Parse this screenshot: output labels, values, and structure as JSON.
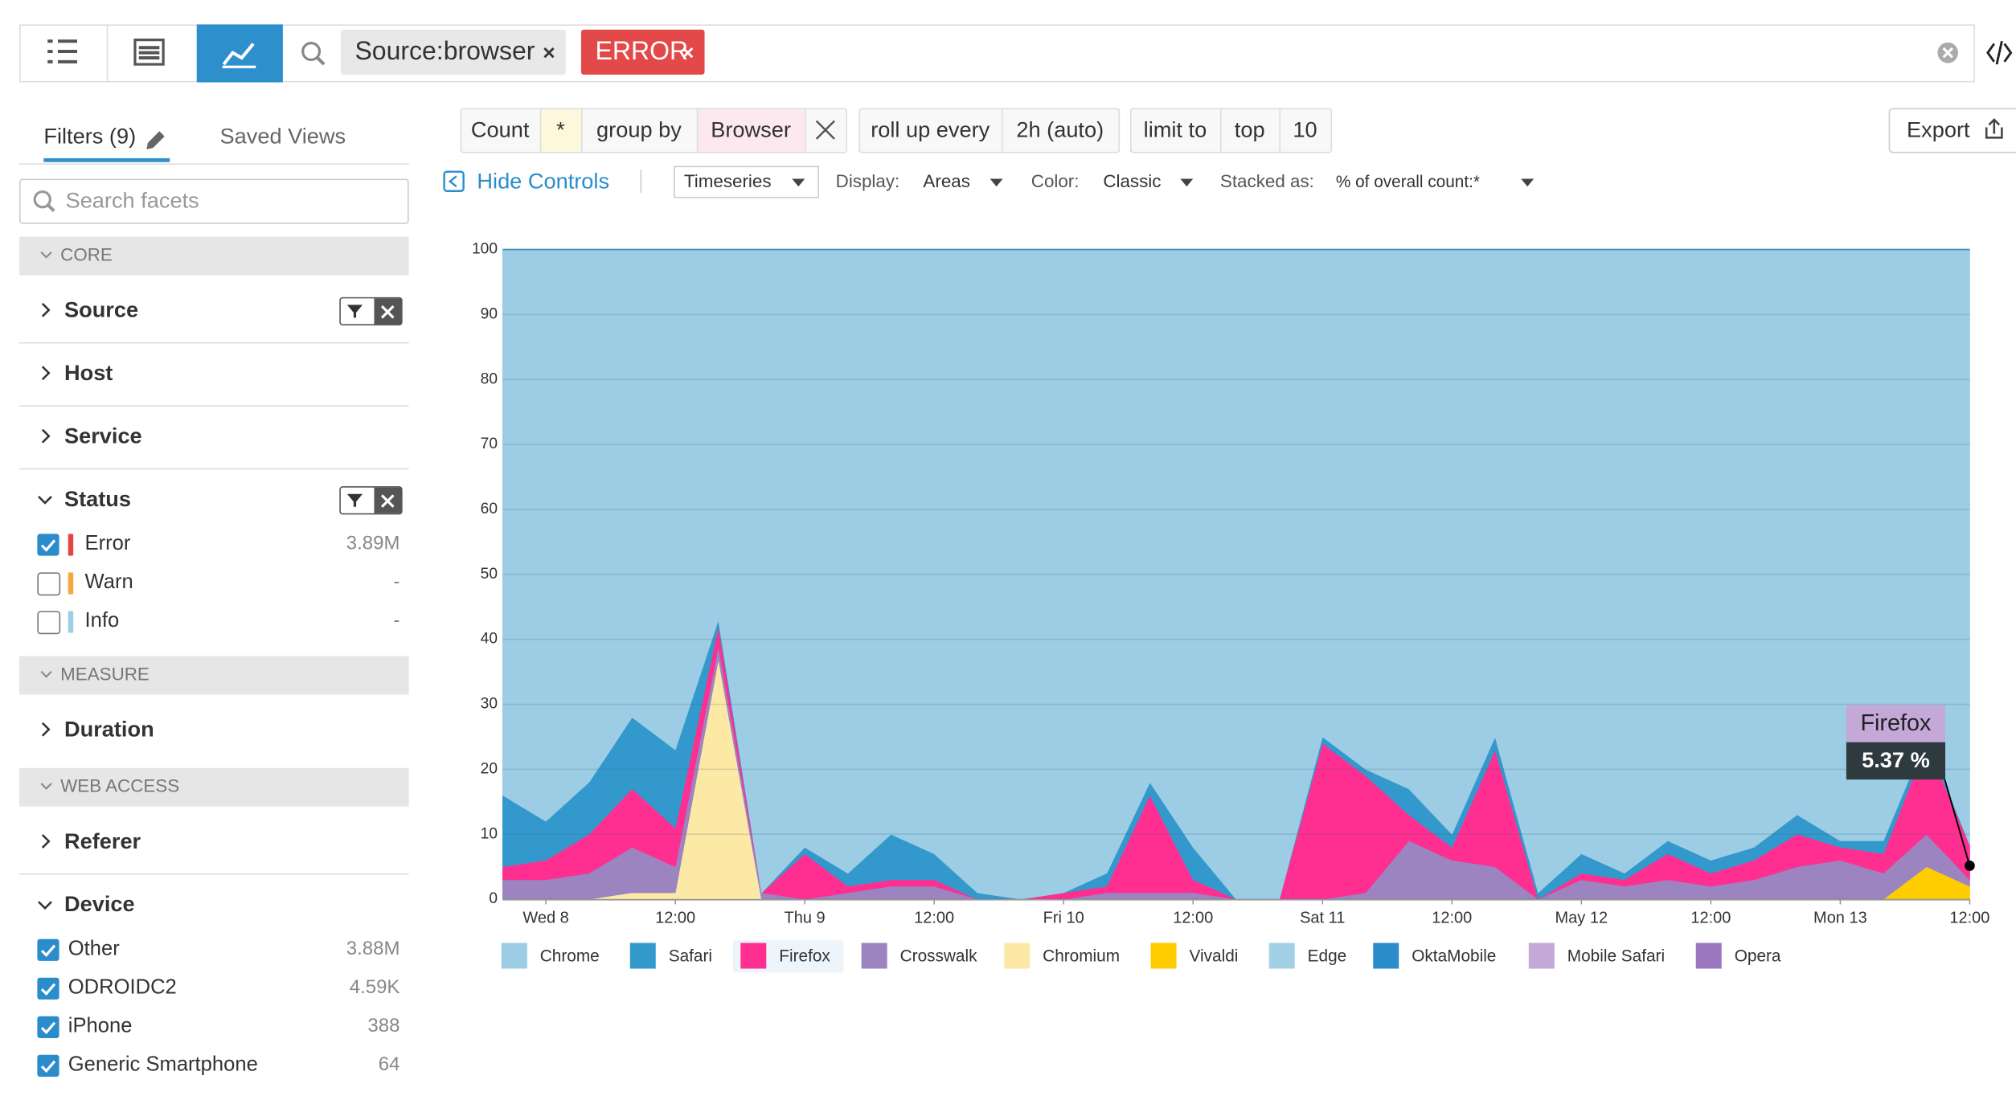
{
  "toolbar": {
    "search_tags": [
      "Source:browser",
      "ERROR"
    ]
  },
  "sidebar": {
    "tabs": [
      "Filters (9)",
      "Saved Views"
    ],
    "search_placeholder": "Search facets",
    "sections": [
      {
        "title": "CORE",
        "facets": [
          {
            "name": "Source",
            "filter_active": true
          },
          {
            "name": "Host"
          },
          {
            "name": "Service"
          },
          {
            "name": "Status",
            "filter_active": true,
            "items": [
              {
                "label": "Error",
                "count": "3.89M",
                "checked": true,
                "color": "#e6453f"
              },
              {
                "label": "Warn",
                "count": "-",
                "checked": false,
                "color": "#f4a742"
              },
              {
                "label": "Info",
                "count": "-",
                "checked": false,
                "color": "#9ccde4"
              }
            ]
          }
        ]
      },
      {
        "title": "MEASURE",
        "facets": [
          {
            "name": "Duration"
          }
        ]
      },
      {
        "title": "WEB ACCESS",
        "facets": [
          {
            "name": "Referer"
          },
          {
            "name": "Device",
            "items": [
              {
                "label": "Other",
                "count": "3.88M",
                "checked": true
              },
              {
                "label": "ODROIDC2",
                "count": "4.59K",
                "checked": true
              },
              {
                "label": "iPhone",
                "count": "388",
                "checked": true
              },
              {
                "label": "Generic Smartphone",
                "count": "64",
                "checked": true
              }
            ]
          }
        ]
      }
    ]
  },
  "query": {
    "parts": [
      "Count",
      "*",
      "group by",
      "Browser",
      "roll up every",
      "2h (auto)",
      "limit to",
      "top",
      "10"
    ],
    "export": "Export"
  },
  "controls": {
    "hide": "Hide Controls",
    "visualization": "Timeseries",
    "display_label": "Display:",
    "display": "Areas",
    "color_label": "Color:",
    "color": "Classic",
    "stacked_label": "Stacked as:",
    "stacked": "% of overall count:*"
  },
  "chart_data": {
    "type": "stacked_area",
    "ylim": [
      0,
      100
    ],
    "yticks": [
      0,
      10,
      20,
      30,
      40,
      50,
      60,
      70,
      80,
      90,
      100
    ],
    "grid": true,
    "categories": [
      null,
      "Wed 8",
      null,
      null,
      "12:00",
      null,
      null,
      "Thu 9",
      null,
      null,
      "12:00",
      null,
      null,
      "Fri 10",
      null,
      null,
      "12:00",
      null,
      null,
      "Sat 11",
      null,
      null,
      "12:00",
      null,
      null,
      "May 12",
      null,
      null,
      "12:00",
      null,
      null,
      "Mon 13",
      null,
      null,
      "12:00"
    ],
    "series": [
      {
        "name": "Chrome",
        "color": "#9ccde4",
        "values": [
          84,
          88,
          82,
          72,
          77,
          57,
          99,
          92,
          96,
          90,
          93,
          99,
          100,
          99,
          96,
          82,
          92,
          100,
          100,
          75,
          80,
          83,
          90,
          75,
          99,
          93,
          96,
          91,
          94,
          92,
          87,
          91,
          91,
          75,
          91.63
        ]
      },
      {
        "name": "Safari",
        "color": "#3399cc",
        "values": [
          11,
          6,
          8,
          11,
          12,
          1,
          0,
          1,
          2,
          7,
          4,
          1,
          0,
          0,
          2,
          2,
          5,
          0,
          0,
          1,
          1,
          4,
          2,
          2,
          1,
          3,
          1,
          2,
          2,
          2,
          3,
          1,
          2,
          1,
          0
        ]
      },
      {
        "name": "Firefox",
        "color": "#ff2f92",
        "values": [
          2,
          3,
          6,
          9,
          6,
          3,
          0,
          7,
          1,
          1,
          1,
          0,
          0,
          1,
          1,
          15,
          2,
          0,
          0,
          24,
          18,
          4,
          2,
          18,
          0,
          1,
          1,
          4,
          2,
          3,
          5,
          2,
          3,
          14,
          5.37
        ]
      },
      {
        "name": "Crosswalk",
        "color": "#9b84c0",
        "values": [
          3,
          3,
          4,
          7,
          4,
          2,
          1,
          0,
          1,
          2,
          2,
          0,
          0,
          0,
          1,
          1,
          1,
          0,
          0,
          0,
          1,
          9,
          6,
          5,
          0,
          3,
          2,
          3,
          2,
          3,
          5,
          6,
          4,
          5,
          1
        ]
      },
      {
        "name": "Chromium",
        "color": "#fde9a6",
        "values": [
          0,
          0,
          0,
          1,
          1,
          37,
          0,
          0,
          0,
          0,
          0,
          0,
          0,
          0,
          0,
          0,
          0,
          0,
          0,
          0,
          0,
          0,
          0,
          0,
          0,
          0,
          0,
          0,
          0,
          0,
          0,
          0,
          0,
          0,
          0
        ]
      },
      {
        "name": "Vivaldi",
        "color": "#ffcc00",
        "values": [
          0,
          0,
          0,
          0,
          0,
          0,
          0,
          0,
          0,
          0,
          0,
          0,
          0,
          0,
          0,
          0,
          0,
          0,
          0,
          0,
          0,
          0,
          0,
          0,
          0,
          0,
          0,
          0,
          0,
          0,
          0,
          0,
          0,
          5,
          2
        ]
      },
      {
        "name": "Edge",
        "color": "#a4d0e6",
        "values": [
          0,
          0,
          0,
          0,
          0,
          0,
          0,
          0,
          0,
          0,
          0,
          0,
          0,
          0,
          0,
          0,
          0,
          0,
          0,
          0,
          0,
          0,
          0,
          0,
          0,
          0,
          0,
          0,
          0,
          0,
          0,
          0,
          0,
          0,
          0
        ]
      },
      {
        "name": "OktaMobile",
        "color": "#2b8ccc",
        "values": [
          0,
          0,
          0,
          0,
          0,
          0,
          0,
          0,
          0,
          0,
          0,
          0,
          0,
          0,
          0,
          0,
          0,
          0,
          0,
          0,
          0,
          0,
          0,
          0,
          0,
          0,
          0,
          0,
          0,
          0,
          0,
          0,
          0,
          0,
          0
        ]
      },
      {
        "name": "Mobile Safari",
        "color": "#c3a8d8",
        "values": [
          0,
          0,
          0,
          0,
          0,
          0,
          0,
          0,
          0,
          0,
          0,
          0,
          0,
          0,
          0,
          0,
          0,
          0,
          0,
          0,
          0,
          0,
          0,
          0,
          0,
          0,
          0,
          0,
          0,
          0,
          0,
          0,
          0,
          0,
          0
        ]
      },
      {
        "name": "Opera",
        "color": "#9b77c0",
        "values": [
          0,
          0,
          0,
          0,
          0,
          0,
          0,
          0,
          0,
          0,
          0,
          0,
          0,
          0,
          0,
          0,
          0,
          0,
          0,
          0,
          0,
          0,
          0,
          0,
          0,
          0,
          0,
          0,
          0,
          0,
          0,
          0,
          0,
          0,
          0
        ]
      }
    ],
    "tooltip": {
      "title": "Firefox",
      "value_label": "5.37 %"
    }
  }
}
